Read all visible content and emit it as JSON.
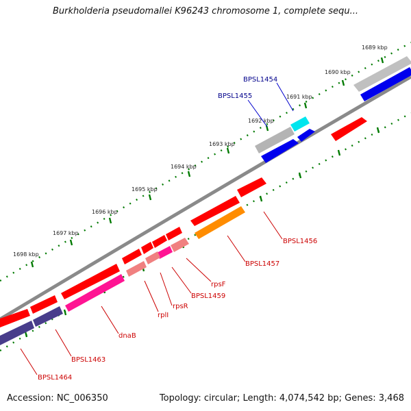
{
  "title": "Burkholderia pseudomallei K96243 chromosome 1, complete sequ...",
  "footer": {
    "accession": "Accession: NC_006350",
    "topology": "Topology: circular; Length: 4,074,542 bp; Genes: 3,468"
  },
  "ruler": [
    "1689 kbp",
    "1690 kbp",
    "1691 kbp",
    "1692 kbp",
    "1693 kbp",
    "1694 kbp",
    "1695 kbp",
    "1696 kbp",
    "1697 kbp",
    "1698 kbp"
  ],
  "genes": [
    {
      "label": "BPSL1454",
      "color": "#00008b"
    },
    {
      "label": "BPSL1455",
      "color": "#00008b"
    },
    {
      "label": "BPSL1456",
      "color": "#cc0000"
    },
    {
      "label": "BPSL1457",
      "color": "#cc0000"
    },
    {
      "label": "rpsF",
      "color": "#cc0000"
    },
    {
      "label": "BPSL1459",
      "color": "#cc0000"
    },
    {
      "label": "rpsR",
      "color": "#cc0000"
    },
    {
      "label": "rplI",
      "color": "#cc0000"
    },
    {
      "label": "dnaB",
      "color": "#cc0000"
    },
    {
      "label": "BPSL1463",
      "color": "#cc0000"
    },
    {
      "label": "BPSL1464",
      "color": "#cc0000"
    }
  ],
  "colors": {
    "backbone": "#808080",
    "tick_green": "#007a00",
    "forward_gene": "#ff0000",
    "reverse_gene": "#ff0000",
    "forward_cds": "#c0c0c0",
    "blue_cds": "#0000ee",
    "cyan_cds": "#00e5ee",
    "magenta_cds": "#ff1493",
    "pink_cds": "#f08080",
    "purple_cds": "#483d8b",
    "orange_cds": "#ff8c00"
  }
}
